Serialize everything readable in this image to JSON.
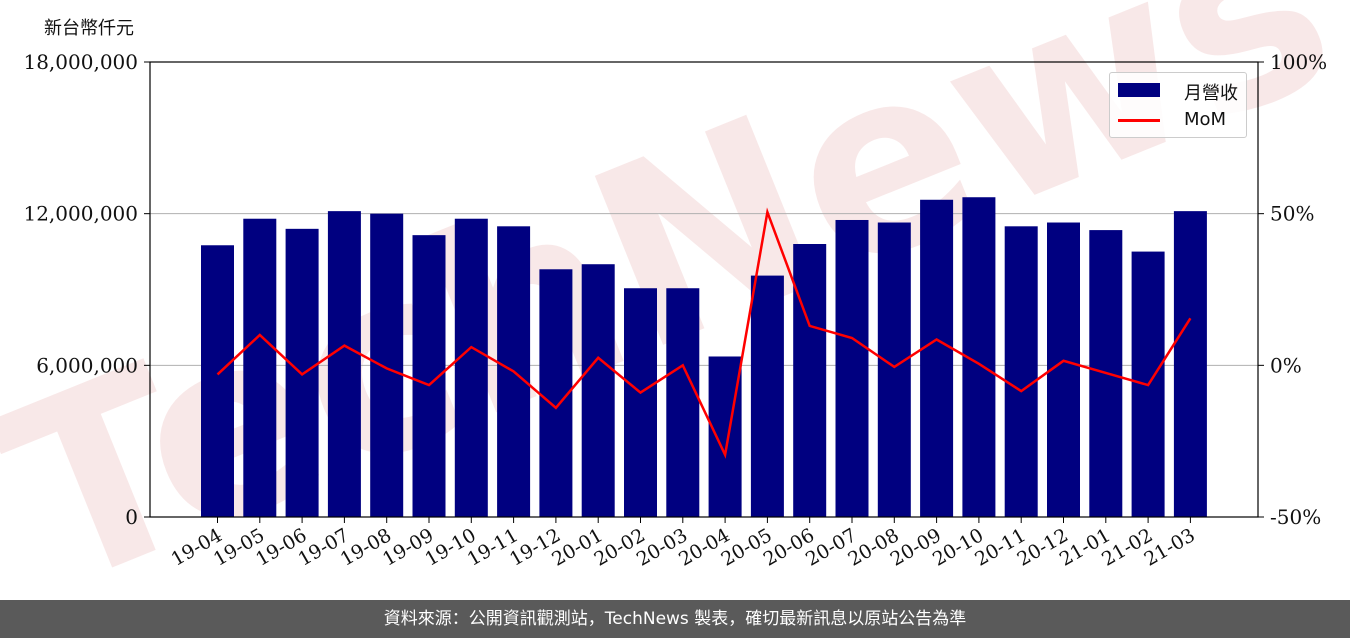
{
  "unit_label": "新台幣仟元",
  "watermark_text": "TechNews",
  "footer_text": "資料來源：公開資訊觀測站，TechNews 製表，確切最新訊息以原站公告為準",
  "colors": {
    "bar": "#000080",
    "line": "#ff0000",
    "footer_bg": "#5a5a5a",
    "watermark": "#f4d6d6"
  },
  "legend": {
    "bar_label": "月營收",
    "line_label": "MoM"
  },
  "chart_data": {
    "type": "bar",
    "categories": [
      "19-04",
      "19-05",
      "19-06",
      "19-07",
      "19-08",
      "19-09",
      "19-10",
      "19-11",
      "19-12",
      "20-01",
      "20-02",
      "20-03",
      "20-04",
      "20-05",
      "20-06",
      "20-07",
      "20-08",
      "20-09",
      "20-10",
      "20-11",
      "20-12",
      "21-01",
      "21-02",
      "21-03"
    ],
    "series": [
      {
        "name": "月營收",
        "axis": "left",
        "type": "bar",
        "values": [
          10750000,
          11800000,
          11400000,
          12100000,
          12000000,
          11150000,
          11800000,
          11500000,
          9800000,
          10000000,
          9050000,
          9050000,
          6350000,
          9550000,
          10800000,
          11750000,
          11650000,
          12550000,
          12650000,
          11500000,
          11650000,
          11350000,
          10500000,
          12100000
        ]
      },
      {
        "name": "MoM",
        "axis": "right",
        "type": "line",
        "values": [
          -3,
          10,
          -3,
          6.5,
          -1,
          -6.5,
          6,
          -2,
          -14,
          2.5,
          -9,
          0,
          -29.5,
          50.5,
          13,
          9,
          -0.5,
          8.5,
          0.5,
          -8.5,
          1.5,
          -2.5,
          -6.5,
          15.5
        ]
      }
    ],
    "yticks_left": [
      "0",
      "6,000,000",
      "12,000,000",
      "18,000,000"
    ],
    "yticks_right": [
      "-50%",
      "0%",
      "50%",
      "100%"
    ],
    "ylim_left": [
      0,
      18000000
    ],
    "ylim_right": [
      -50,
      100
    ],
    "grid": "horizontal",
    "legend_position": "top-right",
    "xlabel": "",
    "ylabel": "新台幣仟元"
  }
}
